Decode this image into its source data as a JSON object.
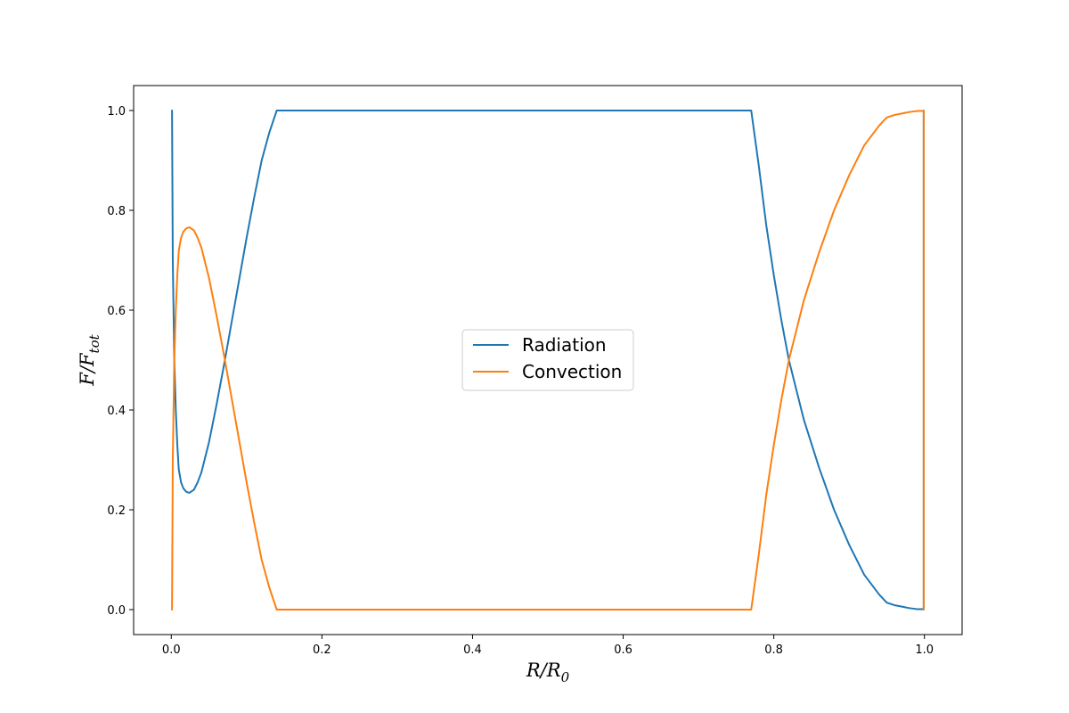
{
  "chart_data": {
    "type": "line",
    "title": "",
    "xlabel": {
      "main": "R/R",
      "sub": "0"
    },
    "ylabel": {
      "main": "F/F",
      "sub": "tot"
    },
    "xlim": [
      -0.05,
      1.05
    ],
    "ylim": [
      -0.05,
      1.05
    ],
    "xticks": [
      0.0,
      0.2,
      0.4,
      0.6,
      0.8,
      1.0
    ],
    "xtick_labels": [
      "0.0",
      "0.2",
      "0.4",
      "0.6",
      "0.8",
      "1.0"
    ],
    "yticks": [
      0.0,
      0.2,
      0.4,
      0.6,
      0.8,
      1.0
    ],
    "ytick_labels": [
      "0.0",
      "0.2",
      "0.4",
      "0.6",
      "0.8",
      "1.0"
    ],
    "grid": false,
    "legend": {
      "position": "center"
    },
    "series": [
      {
        "name": "Radiation",
        "color": "#1f77b4",
        "points": [
          [
            0.0,
            1.0
          ],
          [
            0.001,
            1.0
          ],
          [
            0.002,
            0.7
          ],
          [
            0.004,
            0.5
          ],
          [
            0.006,
            0.4
          ],
          [
            0.008,
            0.33
          ],
          [
            0.01,
            0.28
          ],
          [
            0.013,
            0.255
          ],
          [
            0.016,
            0.243
          ],
          [
            0.02,
            0.236
          ],
          [
            0.024,
            0.234
          ],
          [
            0.03,
            0.24
          ],
          [
            0.035,
            0.255
          ],
          [
            0.04,
            0.275
          ],
          [
            0.05,
            0.335
          ],
          [
            0.06,
            0.41
          ],
          [
            0.07,
            0.49
          ],
          [
            0.08,
            0.575
          ],
          [
            0.09,
            0.66
          ],
          [
            0.1,
            0.745
          ],
          [
            0.11,
            0.825
          ],
          [
            0.12,
            0.9
          ],
          [
            0.13,
            0.955
          ],
          [
            0.14,
            1.0
          ],
          [
            0.2,
            1.0
          ],
          [
            0.4,
            1.0
          ],
          [
            0.6,
            1.0
          ],
          [
            0.77,
            1.0
          ],
          [
            0.78,
            0.89
          ],
          [
            0.79,
            0.77
          ],
          [
            0.8,
            0.67
          ],
          [
            0.81,
            0.58
          ],
          [
            0.82,
            0.5
          ],
          [
            0.84,
            0.38
          ],
          [
            0.86,
            0.285
          ],
          [
            0.88,
            0.2
          ],
          [
            0.9,
            0.13
          ],
          [
            0.92,
            0.07
          ],
          [
            0.94,
            0.03
          ],
          [
            0.95,
            0.014
          ],
          [
            0.96,
            0.009
          ],
          [
            0.97,
            0.006
          ],
          [
            0.98,
            0.003
          ],
          [
            0.99,
            0.001
          ],
          [
            0.998,
            0.001
          ],
          [
            0.999,
            0.0
          ],
          [
            0.999,
            1.0
          ],
          [
            1.0,
            1.0
          ]
        ]
      },
      {
        "name": "Convection",
        "color": "#ff7f0e",
        "points": [
          [
            0.0,
            0.0
          ],
          [
            0.001,
            0.0
          ],
          [
            0.002,
            0.3
          ],
          [
            0.004,
            0.5
          ],
          [
            0.006,
            0.6
          ],
          [
            0.008,
            0.67
          ],
          [
            0.01,
            0.72
          ],
          [
            0.013,
            0.745
          ],
          [
            0.016,
            0.757
          ],
          [
            0.02,
            0.764
          ],
          [
            0.024,
            0.766
          ],
          [
            0.03,
            0.76
          ],
          [
            0.035,
            0.745
          ],
          [
            0.04,
            0.725
          ],
          [
            0.05,
            0.665
          ],
          [
            0.06,
            0.59
          ],
          [
            0.07,
            0.51
          ],
          [
            0.08,
            0.425
          ],
          [
            0.09,
            0.34
          ],
          [
            0.1,
            0.255
          ],
          [
            0.11,
            0.175
          ],
          [
            0.12,
            0.1
          ],
          [
            0.13,
            0.045
          ],
          [
            0.14,
            0.0
          ],
          [
            0.2,
            0.0
          ],
          [
            0.4,
            0.0
          ],
          [
            0.6,
            0.0
          ],
          [
            0.77,
            0.0
          ],
          [
            0.78,
            0.11
          ],
          [
            0.79,
            0.23
          ],
          [
            0.8,
            0.33
          ],
          [
            0.81,
            0.42
          ],
          [
            0.82,
            0.5
          ],
          [
            0.84,
            0.62
          ],
          [
            0.86,
            0.715
          ],
          [
            0.88,
            0.8
          ],
          [
            0.9,
            0.87
          ],
          [
            0.92,
            0.93
          ],
          [
            0.94,
            0.97
          ],
          [
            0.95,
            0.986
          ],
          [
            0.96,
            0.991
          ],
          [
            0.97,
            0.994
          ],
          [
            0.98,
            0.997
          ],
          [
            0.99,
            0.999
          ],
          [
            0.998,
            0.999
          ],
          [
            0.999,
            1.0
          ],
          [
            0.999,
            0.0
          ],
          [
            1.0,
            0.0
          ]
        ]
      }
    ]
  }
}
